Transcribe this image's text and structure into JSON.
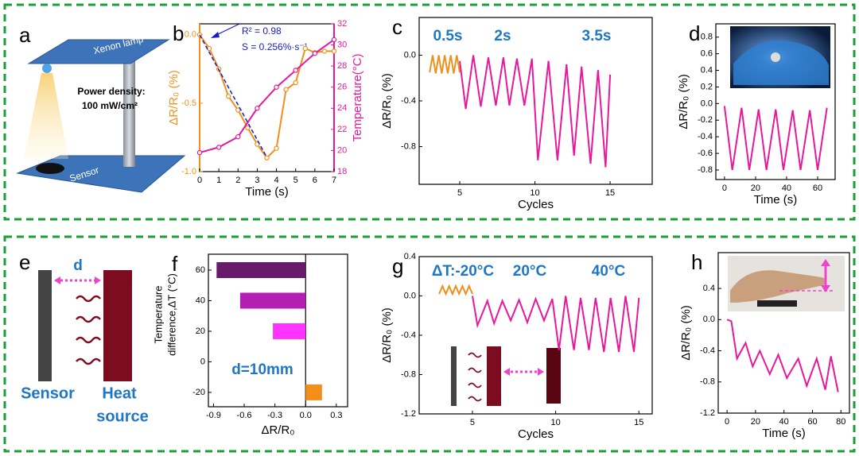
{
  "diagram_a": {
    "panel": "a",
    "lamp": "Xenon lamp",
    "power": "Power density:",
    "power_value": "100 mW/cm²",
    "sensor": "Sensor"
  },
  "diagram_e": {
    "panel": "e",
    "distance": "d",
    "sensor": "Sensor",
    "heat": [
      "Heat",
      "source"
    ]
  },
  "chart_data": [
    {
      "type": "line",
      "panel": "b",
      "xlabel": "Time (s)",
      "ylabel": "ΔR/R₀ (%)",
      "y2label": "Temperature(°C)",
      "xlim": [
        0,
        7
      ],
      "xticks": [
        0,
        1,
        2,
        3,
        4,
        5,
        6,
        7
      ],
      "ylim": [
        -1.0,
        0.08
      ],
      "yticks": [
        {
          "value": -1.0,
          "label": "-1.0"
        },
        -0.5,
        {
          "value": 0,
          "label": "0.0"
        }
      ],
      "y2lim": [
        18,
        32
      ],
      "y2ticks": [
        18,
        20,
        22,
        24,
        26,
        28,
        30,
        32
      ],
      "annotations": [
        "R² = 0.98",
        "S = 0.256%·s⁻¹"
      ],
      "series": [
        {
          "color": "#f0901a",
          "markers": true,
          "x": [
            0,
            0.5,
            1,
            1.5,
            2,
            2.5,
            3,
            3.5,
            4,
            4.5,
            5,
            5.5,
            6,
            6.5,
            7
          ],
          "values": [
            0.0,
            -0.1,
            -0.25,
            -0.45,
            -0.55,
            -0.68,
            -0.8,
            -0.9,
            -0.83,
            -0.4,
            -0.35,
            -0.1,
            -0.13,
            -0.12,
            -0.12
          ]
        },
        {
          "color": "#e8189c",
          "markers": true,
          "axis": "y2",
          "x": [
            0,
            1,
            2,
            3,
            4,
            5,
            6,
            7
          ],
          "values": [
            19.8,
            20.3,
            21.3,
            24,
            26,
            27.6,
            29.2,
            30.5
          ]
        },
        {
          "color": "#1a1acc",
          "style": "dashed",
          "x": [
            0,
            3.5
          ],
          "values": [
            0.0,
            -0.896
          ]
        }
      ]
    },
    {
      "type": "line",
      "panel": "c",
      "xlabel": "Cycles",
      "ylabel": "ΔR/R₀ (%)",
      "xlim": [
        2.3,
        17.8
      ],
      "xticks": [
        5,
        10,
        15
      ],
      "ylim": [
        -1.13,
        0.33
      ],
      "yticks": [
        -0.8,
        -0.4,
        {
          "value": 0,
          "label": "0.0"
        }
      ],
      "annotations": [
        "0.5s",
        "2s",
        "3.5s"
      ],
      "series": [
        {
          "color": "#f0901a",
          "x": [
            3.0,
            3.2,
            3.4,
            3.6,
            3.8,
            4.0,
            4.2,
            4.4,
            4.6,
            4.8,
            5.0
          ],
          "values": [
            -0.15,
            0.0,
            -0.16,
            0.0,
            -0.16,
            0.0,
            -0.16,
            0.0,
            -0.16,
            0.0,
            -0.15
          ]
        },
        {
          "color": "#e8189c",
          "x": [
            5.0,
            5.4,
            5.9,
            6.4,
            6.9,
            7.4,
            7.9,
            8.3,
            8.8,
            9.3,
            9.8,
            10.2,
            10.9,
            11.5,
            12.1,
            12.6,
            13.1,
            13.7,
            14.2,
            14.7,
            15.0
          ],
          "values": [
            -0.05,
            -0.47,
            0.0,
            -0.45,
            -0.02,
            -0.44,
            -0.02,
            -0.44,
            -0.03,
            -0.44,
            -0.03,
            -0.92,
            -0.05,
            -0.92,
            -0.08,
            -0.88,
            -0.1,
            -0.95,
            -0.13,
            -0.98,
            -0.17
          ]
        }
      ]
    },
    {
      "type": "line",
      "panel": "d",
      "xlabel": "Time (s)",
      "ylabel": "ΔR/R₀ (%)",
      "xlim": [
        -5.6,
        71.3
      ],
      "xticks": [
        0,
        20,
        40,
        60
      ],
      "ylim": [
        -0.915,
        0.96
      ],
      "yticks": [
        -0.8,
        -0.6,
        -0.4,
        -0.2,
        {
          "value": 0,
          "label": "0.0"
        },
        0.2,
        0.4,
        0.6,
        0.8
      ],
      "series": [
        {
          "color": "#e8189c",
          "x": [
            0,
            5,
            11,
            16,
            22,
            27,
            33,
            38,
            44,
            49,
            55,
            60,
            66
          ],
          "values": [
            -0.03,
            -0.8,
            -0.05,
            -0.8,
            -0.07,
            -0.8,
            -0.07,
            -0.8,
            -0.08,
            -0.8,
            -0.08,
            -0.8,
            -0.05
          ]
        }
      ]
    },
    {
      "type": "barh",
      "panel": "f",
      "xlabel": "ΔR/R₀",
      "ylabel": [
        "Temperature",
        "difference,ΔT (°C)"
      ],
      "xlim": [
        -0.95,
        0.41
      ],
      "xticks": [
        -0.9,
        -0.6,
        -0.3,
        {
          "value": 0,
          "label": "0.0"
        },
        0.3
      ],
      "ylim": [
        -29.4,
        70.4
      ],
      "yticks": [
        -20,
        0,
        20,
        40,
        60
      ],
      "annotations": [
        "d=10mm"
      ],
      "x": [
        60,
        40,
        20,
        -20
      ],
      "values": [
        -0.87,
        -0.64,
        -0.32,
        0.16
      ],
      "colors": [
        "#6a1a6a",
        "#b21fb2",
        "#ff33ff",
        "#f0901a"
      ]
    },
    {
      "type": "line",
      "panel": "g",
      "xlabel": "Cycles",
      "ylabel": "ΔR/R₀ (%)",
      "xlim": [
        1.8,
        15.8
      ],
      "xticks": [
        5,
        10,
        15
      ],
      "ylim": [
        -1.2,
        0.4
      ],
      "yticks": [
        -1.2,
        -0.8,
        -0.4,
        {
          "value": 0,
          "label": "0.0"
        },
        0.4
      ],
      "annotations": [
        "ΔT:-20°C",
        "20°C",
        "40°C"
      ],
      "series": [
        {
          "color": "#f0901a",
          "x": [
            3.0,
            3.2,
            3.4,
            3.6,
            3.8,
            4.0,
            4.2,
            4.4,
            4.6,
            4.8,
            5.0
          ],
          "values": [
            0.02,
            0.1,
            0.02,
            0.1,
            0.02,
            0.1,
            0.02,
            0.1,
            0.02,
            0.1,
            0.02
          ]
        },
        {
          "color": "#e8189c",
          "x": [
            5.0,
            5.3,
            5.9,
            6.3,
            6.8,
            7.3,
            7.8,
            8.3,
            8.8,
            9.3,
            9.8,
            10.2,
            10.6,
            11.1,
            11.5,
            12.0,
            12.4,
            12.9,
            13.3,
            13.8,
            14.2,
            14.7,
            15.0
          ],
          "values": [
            0.0,
            -0.3,
            -0.05,
            -0.28,
            -0.05,
            -0.25,
            -0.04,
            -0.27,
            -0.03,
            -0.25,
            -0.03,
            -0.55,
            0.0,
            -0.55,
            -0.02,
            -0.55,
            -0.02,
            -0.57,
            -0.02,
            -0.57,
            0.0,
            -0.57,
            -0.02
          ]
        }
      ]
    },
    {
      "type": "line",
      "panel": "h",
      "xlabel": "Time (s)",
      "ylabel": "ΔR/R₀ (%)",
      "xlim": [
        -6.2,
        86
      ],
      "xticks": [
        0,
        20,
        40,
        60,
        80
      ],
      "ylim": [
        -1.2,
        0.86
      ],
      "yticks": [
        -1.2,
        -0.8,
        -0.4,
        {
          "value": 0,
          "label": "0.0"
        },
        0.4
      ],
      "series": [
        {
          "color": "#e8189c",
          "x": [
            0,
            3,
            7,
            13,
            18,
            23,
            30,
            36,
            42,
            50,
            56,
            63,
            69,
            73,
            78
          ],
          "values": [
            0.0,
            -0.02,
            -0.5,
            -0.3,
            -0.6,
            -0.4,
            -0.7,
            -0.45,
            -0.75,
            -0.5,
            -0.85,
            -0.5,
            -0.9,
            -0.47,
            -0.93
          ]
        }
      ]
    }
  ]
}
